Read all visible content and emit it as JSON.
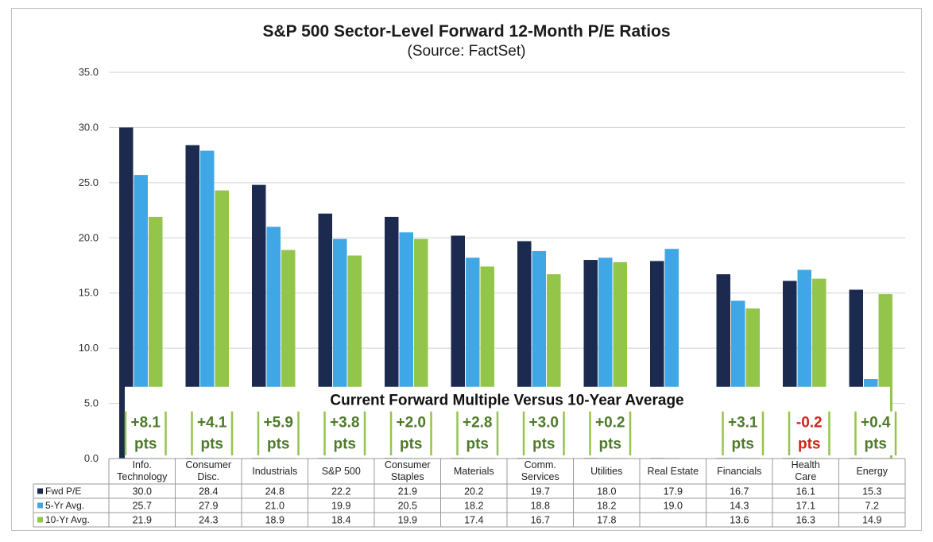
{
  "title": "S&P 500 Sector-Level Forward 12-Month P/E Ratios",
  "subtitle": "(Source: FactSet)",
  "colors": {
    "fwd": "#1b2a4e",
    "avg5": "#3fa7e6",
    "avg10": "#93c54b",
    "positive": "#4e7a2a",
    "negative": "#d0231c",
    "grid": "#d0d0d0"
  },
  "chart_data": {
    "type": "bar",
    "title": "S&P 500 Sector-Level Forward 12-Month P/E Ratios",
    "subtitle": "(Source: FactSet)",
    "categories": [
      [
        "Info.",
        "Technology"
      ],
      [
        "Consumer",
        "Disc."
      ],
      [
        "Industrials"
      ],
      [
        "S&P 500"
      ],
      [
        "Consumer",
        "Staples"
      ],
      [
        "Materials"
      ],
      [
        "Comm.",
        "Services"
      ],
      [
        "Utilities"
      ],
      [
        "Real Estate"
      ],
      [
        "Financials"
      ],
      [
        "Health",
        "Care"
      ],
      [
        "Energy"
      ]
    ],
    "series": [
      {
        "name": "Fwd P/E",
        "values": [
          30.0,
          28.4,
          24.8,
          22.2,
          21.9,
          20.2,
          19.7,
          18.0,
          17.9,
          16.7,
          16.1,
          15.3
        ]
      },
      {
        "name": "5-Yr Avg.",
        "values": [
          25.7,
          27.9,
          21.0,
          19.9,
          20.5,
          18.2,
          18.8,
          18.2,
          19.0,
          14.3,
          17.1,
          7.2
        ]
      },
      {
        "name": "10-Yr Avg.",
        "values": [
          21.9,
          24.3,
          18.9,
          18.4,
          19.9,
          17.4,
          16.7,
          17.8,
          null,
          13.6,
          16.3,
          14.9
        ]
      }
    ],
    "table_cells": [
      [
        "30.0",
        "28.4",
        "24.8",
        "22.2",
        "21.9",
        "20.2",
        "19.7",
        "18.0",
        "17.9",
        "16.7",
        "16.1",
        "15.3"
      ],
      [
        "25.7",
        "27.9",
        "21.0",
        "19.9",
        "20.5",
        "18.2",
        "18.8",
        "18.2",
        "19.0",
        "14.3",
        "17.1",
        "7.2"
      ],
      [
        "21.9",
        "24.3",
        "18.9",
        "18.4",
        "19.9",
        "17.4",
        "16.7",
        "17.8",
        "",
        "13.6",
        "16.3",
        "14.9"
      ]
    ],
    "ylim": [
      0,
      35
    ],
    "yticks": [
      "0.0",
      "5.0",
      "10.0",
      "15.0",
      "20.0",
      "25.0",
      "30.0",
      "35.0"
    ],
    "grid": true,
    "legend": "data-table-left",
    "annotation": {
      "title": "Current Forward Multiple Versus 10-Year Average",
      "unit": "pts",
      "labels": [
        "+8.1",
        "+4.1",
        "+5.9",
        "+3.8",
        "+2.0",
        "+2.8",
        "+3.0",
        "+0.2",
        null,
        "+3.1",
        "-0.2",
        "+0.4"
      ]
    }
  }
}
